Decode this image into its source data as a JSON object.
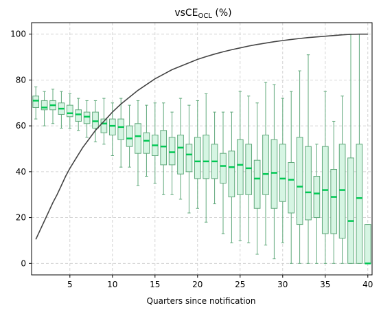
{
  "chart_data": {
    "type": "box",
    "title": "vsCE",
    "title_subscript": "OCL",
    "title_suffix": " (%)",
    "xlabel": "Quarters since notification",
    "ylabel": "",
    "xlim": [
      0.5,
      40.5
    ],
    "ylim": [
      -5,
      105
    ],
    "xticks": [
      5,
      10,
      15,
      20,
      25,
      30,
      35,
      40
    ],
    "yticks": [
      0,
      20,
      40,
      60,
      80,
      100
    ],
    "grid": true,
    "colors": {
      "box_fill": "#d6f5e3",
      "box_edge": "#5fa87a",
      "median": "#00c853",
      "curve": "#444444",
      "grid": "#c8c8c8"
    },
    "boxes": [
      {
        "x": 1,
        "whislo": 63,
        "q1": 68,
        "med": 71,
        "q3": 73,
        "whishi": 77
      },
      {
        "x": 2,
        "whislo": 60,
        "q1": 67,
        "med": 68,
        "q3": 71,
        "whishi": 75
      },
      {
        "x": 3,
        "whislo": 61,
        "q1": 67,
        "med": 69,
        "q3": 71,
        "whishi": 76
      },
      {
        "x": 4,
        "whislo": 59,
        "q1": 65,
        "med": 67.5,
        "q3": 70,
        "whishi": 75
      },
      {
        "x": 5,
        "whislo": 59,
        "q1": 64,
        "med": 65.5,
        "q3": 69,
        "whishi": 74
      },
      {
        "x": 6,
        "whislo": 58,
        "q1": 62,
        "med": 65,
        "q3": 67,
        "whishi": 72
      },
      {
        "x": 7,
        "whislo": 55,
        "q1": 61,
        "med": 64,
        "q3": 66,
        "whishi": 71
      },
      {
        "x": 8,
        "whislo": 53,
        "q1": 59,
        "med": 62,
        "q3": 66,
        "whishi": 71
      },
      {
        "x": 9,
        "whislo": 52,
        "q1": 57,
        "med": 61,
        "q3": 63,
        "whishi": 72
      },
      {
        "x": 10,
        "whislo": 47,
        "q1": 56,
        "med": 60,
        "q3": 63,
        "whishi": 70
      },
      {
        "x": 11,
        "whislo": 42,
        "q1": 54,
        "med": 59.5,
        "q3": 63,
        "whishi": 72
      },
      {
        "x": 12,
        "whislo": 42,
        "q1": 51,
        "med": 54.5,
        "q3": 60,
        "whishi": 69
      },
      {
        "x": 13,
        "whislo": 34,
        "q1": 48,
        "med": 55.5,
        "q3": 61,
        "whishi": 71
      },
      {
        "x": 14,
        "whislo": 38,
        "q1": 48,
        "med": 53.5,
        "q3": 57,
        "whishi": 69
      },
      {
        "x": 15,
        "whislo": 35,
        "q1": 47,
        "med": 51.5,
        "q3": 56,
        "whishi": 70
      },
      {
        "x": 16,
        "whislo": 30,
        "q1": 43,
        "med": 51,
        "q3": 58,
        "whishi": 70
      },
      {
        "x": 17,
        "whislo": 30,
        "q1": 43,
        "med": 48.5,
        "q3": 55,
        "whishi": 66
      },
      {
        "x": 18,
        "whislo": 28,
        "q1": 39,
        "med": 50.5,
        "q3": 56,
        "whishi": 72
      },
      {
        "x": 19,
        "whislo": 22,
        "q1": 40,
        "med": 47.5,
        "q3": 52,
        "whishi": 69
      },
      {
        "x": 20,
        "whislo": 24,
        "q1": 37,
        "med": 44.5,
        "q3": 55,
        "whishi": 71
      },
      {
        "x": 21,
        "whislo": 18,
        "q1": 37,
        "med": 44.5,
        "q3": 56,
        "whishi": 74
      },
      {
        "x": 22,
        "whislo": 26,
        "q1": 37,
        "med": 44.5,
        "q3": 52,
        "whishi": 66
      },
      {
        "x": 23,
        "whislo": 13,
        "q1": 35,
        "med": 42.5,
        "q3": 48,
        "whishi": 66
      },
      {
        "x": 24,
        "whislo": 9,
        "q1": 29,
        "med": 42,
        "q3": 49,
        "whishi": 66
      },
      {
        "x": 25,
        "whislo": 10,
        "q1": 30,
        "med": 43,
        "q3": 54,
        "whishi": 75
      },
      {
        "x": 26,
        "whislo": 9,
        "q1": 30,
        "med": 41.5,
        "q3": 52,
        "whishi": 73
      },
      {
        "x": 27,
        "whislo": 4,
        "q1": 24,
        "med": 37,
        "q3": 45,
        "whishi": 70
      },
      {
        "x": 28,
        "whislo": 8,
        "q1": 30,
        "med": 39,
        "q3": 56,
        "whishi": 79
      },
      {
        "x": 29,
        "whislo": 2,
        "q1": 24,
        "med": 39.5,
        "q3": 54,
        "whishi": 78
      },
      {
        "x": 30,
        "whislo": 9,
        "q1": 27,
        "med": 37,
        "q3": 52,
        "whishi": 72
      },
      {
        "x": 31,
        "whislo": 0,
        "q1": 22,
        "med": 36.5,
        "q3": 44,
        "whishi": 75
      },
      {
        "x": 32,
        "whislo": 0,
        "q1": 17,
        "med": 33.5,
        "q3": 55,
        "whishi": 84
      },
      {
        "x": 33,
        "whislo": 0,
        "q1": 19,
        "med": 31,
        "q3": 51,
        "whishi": 91
      },
      {
        "x": 34,
        "whislo": 0,
        "q1": 20,
        "med": 30.5,
        "q3": 38,
        "whishi": 52
      },
      {
        "x": 35,
        "whislo": 0,
        "q1": 13,
        "med": 32,
        "q3": 51,
        "whishi": 75
      },
      {
        "x": 36,
        "whislo": 0,
        "q1": 13,
        "med": 29,
        "q3": 41,
        "whishi": 62
      },
      {
        "x": 37,
        "whislo": 0,
        "q1": 11,
        "med": 32,
        "q3": 52,
        "whishi": 73
      },
      {
        "x": 38,
        "whislo": 0,
        "q1": 0,
        "med": 18.5,
        "q3": 46,
        "whishi": 100
      },
      {
        "x": 39,
        "whislo": 0,
        "q1": 0,
        "med": 28.5,
        "q3": 52,
        "whishi": 100
      },
      {
        "x": 40,
        "whislo": 0,
        "q1": 0,
        "med": 0,
        "q3": 17,
        "whishi": 17
      }
    ],
    "curve": {
      "x": [
        1,
        1.5,
        2,
        2.5,
        3,
        3.5,
        4,
        4.5,
        5,
        5.5,
        6,
        6.5,
        7,
        7.5,
        8,
        8.5,
        9,
        9.5,
        10,
        11,
        12,
        13,
        14,
        15,
        16,
        17,
        18,
        19,
        20,
        21,
        22,
        23,
        24,
        25,
        26,
        27,
        28,
        29,
        30,
        31,
        32,
        33,
        34,
        35,
        36,
        37,
        38,
        39,
        40
      ],
      "y": [
        10.5,
        14.5,
        18.5,
        22.5,
        26.5,
        30,
        34,
        38,
        41.5,
        44.5,
        47.5,
        50.5,
        53,
        55.5,
        58,
        60,
        62,
        64,
        66,
        69.5,
        72.5,
        75.5,
        78,
        80.5,
        82.5,
        84.5,
        86,
        87.5,
        89,
        90.2,
        91.3,
        92.3,
        93.2,
        94,
        94.8,
        95.5,
        96.1,
        96.7,
        97.2,
        97.7,
        98.1,
        98.5,
        98.8,
        99.1,
        99.4,
        99.7,
        99.9,
        100,
        100
      ]
    }
  }
}
